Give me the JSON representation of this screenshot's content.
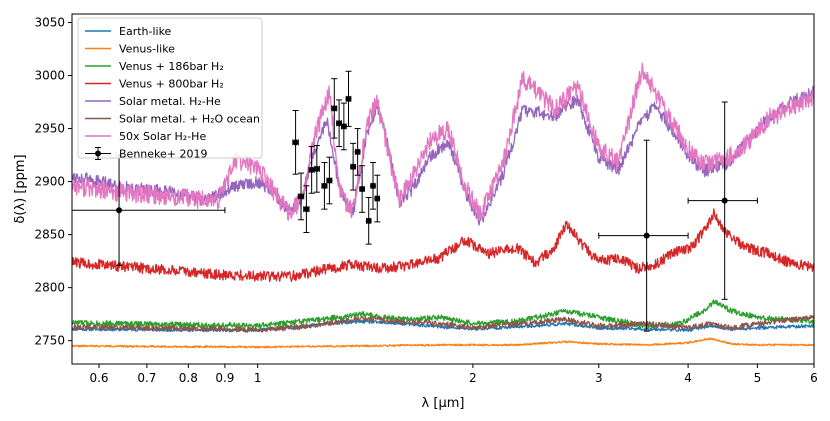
{
  "chart_data": {
    "type": "line",
    "xlabel": "λ [μm]",
    "ylabel": "δ(λ) [ppm]",
    "xscale": "log",
    "xlim": [
      0.55,
      6.0
    ],
    "ylim": [
      2728,
      3058
    ],
    "xticks": [
      {
        "value": 0.6,
        "label": "0.6"
      },
      {
        "value": 0.7,
        "label": "0.7"
      },
      {
        "value": 0.8,
        "label": "0.8"
      },
      {
        "value": 0.9,
        "label": "0.9"
      },
      {
        "value": 1.0,
        "label": "1"
      },
      {
        "value": 2.0,
        "label": "2"
      },
      {
        "value": 3.0,
        "label": "3"
      },
      {
        "value": 4.0,
        "label": "4"
      },
      {
        "value": 5.0,
        "label": "5"
      },
      {
        "value": 6.0,
        "label": "6"
      }
    ],
    "yticks": [
      {
        "value": 2750,
        "label": "2750"
      },
      {
        "value": 2800,
        "label": "2800"
      },
      {
        "value": 2850,
        "label": "2850"
      },
      {
        "value": 2900,
        "label": "2900"
      },
      {
        "value": 2950,
        "label": "2950"
      },
      {
        "value": 3000,
        "label": "3000"
      },
      {
        "value": 3050,
        "label": "3050"
      }
    ],
    "legend_position": "upper-left",
    "series": [
      {
        "name": "Earth-like",
        "color": "#1f77b4",
        "noise": 1.5,
        "seed": 11,
        "points": [
          [
            0.55,
            2761
          ],
          [
            0.8,
            2760
          ],
          [
            1.0,
            2760
          ],
          [
            1.15,
            2763
          ],
          [
            1.25,
            2766
          ],
          [
            1.4,
            2768
          ],
          [
            1.6,
            2766
          ],
          [
            1.8,
            2763
          ],
          [
            2.0,
            2761
          ],
          [
            2.3,
            2763
          ],
          [
            2.7,
            2766
          ],
          [
            3.0,
            2762
          ],
          [
            3.5,
            2761
          ],
          [
            4.0,
            2760
          ],
          [
            4.3,
            2764
          ],
          [
            4.6,
            2761
          ],
          [
            5.0,
            2762
          ],
          [
            6.0,
            2764
          ]
        ]
      },
      {
        "name": "Venus-like",
        "color": "#ff7f0e",
        "noise": 0.8,
        "seed": 22,
        "points": [
          [
            0.55,
            2745
          ],
          [
            1.0,
            2744
          ],
          [
            1.4,
            2745
          ],
          [
            1.8,
            2746
          ],
          [
            2.3,
            2746
          ],
          [
            2.7,
            2749
          ],
          [
            3.0,
            2747
          ],
          [
            3.5,
            2746
          ],
          [
            4.0,
            2748
          ],
          [
            4.3,
            2752
          ],
          [
            4.6,
            2747
          ],
          [
            5.0,
            2746
          ],
          [
            6.0,
            2746
          ]
        ]
      },
      {
        "name": "Venus + 186bar H₂",
        "color": "#2ca02c",
        "noise": 2.5,
        "seed": 33,
        "points": [
          [
            0.55,
            2767
          ],
          [
            0.8,
            2765
          ],
          [
            1.0,
            2764
          ],
          [
            1.15,
            2768
          ],
          [
            1.3,
            2772
          ],
          [
            1.4,
            2775
          ],
          [
            1.6,
            2770
          ],
          [
            1.8,
            2772
          ],
          [
            2.0,
            2766
          ],
          [
            2.3,
            2768
          ],
          [
            2.7,
            2778
          ],
          [
            3.0,
            2772
          ],
          [
            3.5,
            2764
          ],
          [
            3.9,
            2766
          ],
          [
            4.2,
            2778
          ],
          [
            4.35,
            2787
          ],
          [
            4.6,
            2778
          ],
          [
            5.0,
            2772
          ],
          [
            6.0,
            2768
          ]
        ]
      },
      {
        "name": "Venus + 800bar H₂",
        "color": "#d62728",
        "noise": 5,
        "seed": 44,
        "points": [
          [
            0.55,
            2824
          ],
          [
            0.7,
            2818
          ],
          [
            0.9,
            2812
          ],
          [
            1.1,
            2810
          ],
          [
            1.2,
            2815
          ],
          [
            1.35,
            2822
          ],
          [
            1.5,
            2818
          ],
          [
            1.65,
            2822
          ],
          [
            1.8,
            2828
          ],
          [
            1.95,
            2845
          ],
          [
            2.1,
            2832
          ],
          [
            2.3,
            2838
          ],
          [
            2.45,
            2823
          ],
          [
            2.6,
            2838
          ],
          [
            2.7,
            2860
          ],
          [
            2.85,
            2840
          ],
          [
            3.0,
            2825
          ],
          [
            3.2,
            2828
          ],
          [
            3.4,
            2818
          ],
          [
            3.6,
            2822
          ],
          [
            3.8,
            2832
          ],
          [
            4.05,
            2838
          ],
          [
            4.25,
            2858
          ],
          [
            4.35,
            2870
          ],
          [
            4.5,
            2854
          ],
          [
            4.8,
            2838
          ],
          [
            5.2,
            2832
          ],
          [
            5.6,
            2822
          ],
          [
            6.0,
            2820
          ]
        ]
      },
      {
        "name": "Solar metal. H₂-He",
        "color": "#9467bd",
        "noise": 6,
        "seed": 55,
        "points": [
          [
            0.55,
            2905
          ],
          [
            0.65,
            2895
          ],
          [
            0.75,
            2890
          ],
          [
            0.85,
            2882
          ],
          [
            0.93,
            2896
          ],
          [
            1.0,
            2900
          ],
          [
            1.05,
            2892
          ],
          [
            1.1,
            2872
          ],
          [
            1.15,
            2882
          ],
          [
            1.2,
            2930
          ],
          [
            1.25,
            2958
          ],
          [
            1.3,
            2895
          ],
          [
            1.36,
            2870
          ],
          [
            1.42,
            2944
          ],
          [
            1.47,
            2972
          ],
          [
            1.52,
            2935
          ],
          [
            1.58,
            2880
          ],
          [
            1.65,
            2894
          ],
          [
            1.75,
            2925
          ],
          [
            1.85,
            2938
          ],
          [
            1.95,
            2890
          ],
          [
            2.05,
            2862
          ],
          [
            2.2,
            2905
          ],
          [
            2.35,
            2968
          ],
          [
            2.6,
            2962
          ],
          [
            2.8,
            2978
          ],
          [
            3.0,
            2922
          ],
          [
            3.2,
            2912
          ],
          [
            3.4,
            2950
          ],
          [
            3.6,
            2972
          ],
          [
            3.8,
            2948
          ],
          [
            4.0,
            2925
          ],
          [
            4.2,
            2910
          ],
          [
            4.5,
            2915
          ],
          [
            4.8,
            2935
          ],
          [
            5.2,
            2962
          ],
          [
            5.6,
            2975
          ],
          [
            6.0,
            2985
          ]
        ]
      },
      {
        "name": "Solar metal. + H₂O ocean",
        "color": "#8c564b",
        "noise": 2.5,
        "seed": 66,
        "points": [
          [
            0.55,
            2763
          ],
          [
            0.9,
            2761
          ],
          [
            1.0,
            2760
          ],
          [
            1.15,
            2763
          ],
          [
            1.3,
            2768
          ],
          [
            1.4,
            2771
          ],
          [
            1.6,
            2768
          ],
          [
            1.8,
            2766
          ],
          [
            2.0,
            2762
          ],
          [
            2.3,
            2766
          ],
          [
            2.7,
            2770
          ],
          [
            3.0,
            2764
          ],
          [
            3.5,
            2766
          ],
          [
            4.0,
            2762
          ],
          [
            4.3,
            2766
          ],
          [
            4.6,
            2762
          ],
          [
            5.0,
            2766
          ],
          [
            6.0,
            2772
          ]
        ]
      },
      {
        "name": "50x Solar H₂-He",
        "color": "#e377c2",
        "noise": 9,
        "seed": 77,
        "points": [
          [
            0.55,
            2897
          ],
          [
            0.62,
            2890
          ],
          [
            0.7,
            2888
          ],
          [
            0.8,
            2884
          ],
          [
            0.88,
            2882
          ],
          [
            0.93,
            2920
          ],
          [
            1.0,
            2914
          ],
          [
            1.05,
            2892
          ],
          [
            1.1,
            2872
          ],
          [
            1.15,
            2880
          ],
          [
            1.2,
            2940
          ],
          [
            1.26,
            2985
          ],
          [
            1.3,
            2892
          ],
          [
            1.36,
            2870
          ],
          [
            1.42,
            2952
          ],
          [
            1.47,
            2975
          ],
          [
            1.52,
            2930
          ],
          [
            1.58,
            2882
          ],
          [
            1.65,
            2905
          ],
          [
            1.75,
            2940
          ],
          [
            1.85,
            2950
          ],
          [
            1.95,
            2895
          ],
          [
            2.05,
            2868
          ],
          [
            2.2,
            2915
          ],
          [
            2.35,
            2998
          ],
          [
            2.6,
            2968
          ],
          [
            2.8,
            2990
          ],
          [
            3.0,
            2932
          ],
          [
            3.2,
            2918
          ],
          [
            3.45,
            3008
          ],
          [
            3.6,
            2985
          ],
          [
            3.8,
            2955
          ],
          [
            4.0,
            2932
          ],
          [
            4.2,
            2918
          ],
          [
            4.5,
            2920
          ],
          [
            4.8,
            2935
          ],
          [
            5.2,
            2960
          ],
          [
            5.6,
            2970
          ],
          [
            6.0,
            2980
          ]
        ]
      }
    ],
    "observations": {
      "name": "Benneke+ 2019",
      "color": "#000000",
      "points": [
        {
          "x": 0.64,
          "y": 2873,
          "xerr": [
            0.55,
            0.9
          ],
          "yerr": 52
        },
        {
          "x": 1.13,
          "y": 2937,
          "xerr": [
            1.12,
            1.14
          ],
          "yerr": 30
        },
        {
          "x": 1.15,
          "y": 2886,
          "xerr": [
            1.14,
            1.16
          ],
          "yerr": 22
        },
        {
          "x": 1.17,
          "y": 2874,
          "xerr": [
            1.16,
            1.18
          ],
          "yerr": 22
        },
        {
          "x": 1.19,
          "y": 2911,
          "xerr": [
            1.18,
            1.2
          ],
          "yerr": 22
        },
        {
          "x": 1.21,
          "y": 2912,
          "xerr": [
            1.2,
            1.22
          ],
          "yerr": 22
        },
        {
          "x": 1.24,
          "y": 2896,
          "xerr": [
            1.23,
            1.25
          ],
          "yerr": 22
        },
        {
          "x": 1.26,
          "y": 2901,
          "xerr": [
            1.25,
            1.27
          ],
          "yerr": 22
        },
        {
          "x": 1.28,
          "y": 2969,
          "xerr": [
            1.27,
            1.29
          ],
          "yerr": 28
        },
        {
          "x": 1.3,
          "y": 2955,
          "xerr": [
            1.29,
            1.31
          ],
          "yerr": 22
        },
        {
          "x": 1.32,
          "y": 2952,
          "xerr": [
            1.31,
            1.33
          ],
          "yerr": 22
        },
        {
          "x": 1.34,
          "y": 2978,
          "xerr": [
            1.33,
            1.35
          ],
          "yerr": 26
        },
        {
          "x": 1.36,
          "y": 2914,
          "xerr": [
            1.35,
            1.37
          ],
          "yerr": 22
        },
        {
          "x": 1.38,
          "y": 2928,
          "xerr": [
            1.37,
            1.39
          ],
          "yerr": 22
        },
        {
          "x": 1.4,
          "y": 2893,
          "xerr": [
            1.39,
            1.41
          ],
          "yerr": 22
        },
        {
          "x": 1.43,
          "y": 2863,
          "xerr": [
            1.42,
            1.44
          ],
          "yerr": 22
        },
        {
          "x": 1.45,
          "y": 2896,
          "xerr": [
            1.44,
            1.46
          ],
          "yerr": 22
        },
        {
          "x": 1.47,
          "y": 2884,
          "xerr": [
            1.46,
            1.48
          ],
          "yerr": 22
        },
        {
          "x": 3.5,
          "y": 2849,
          "xerr": [
            3.0,
            4.0
          ],
          "yerr": 90
        },
        {
          "x": 4.5,
          "y": 2882,
          "xerr": [
            4.0,
            5.0
          ],
          "yerr": 93
        }
      ]
    }
  }
}
